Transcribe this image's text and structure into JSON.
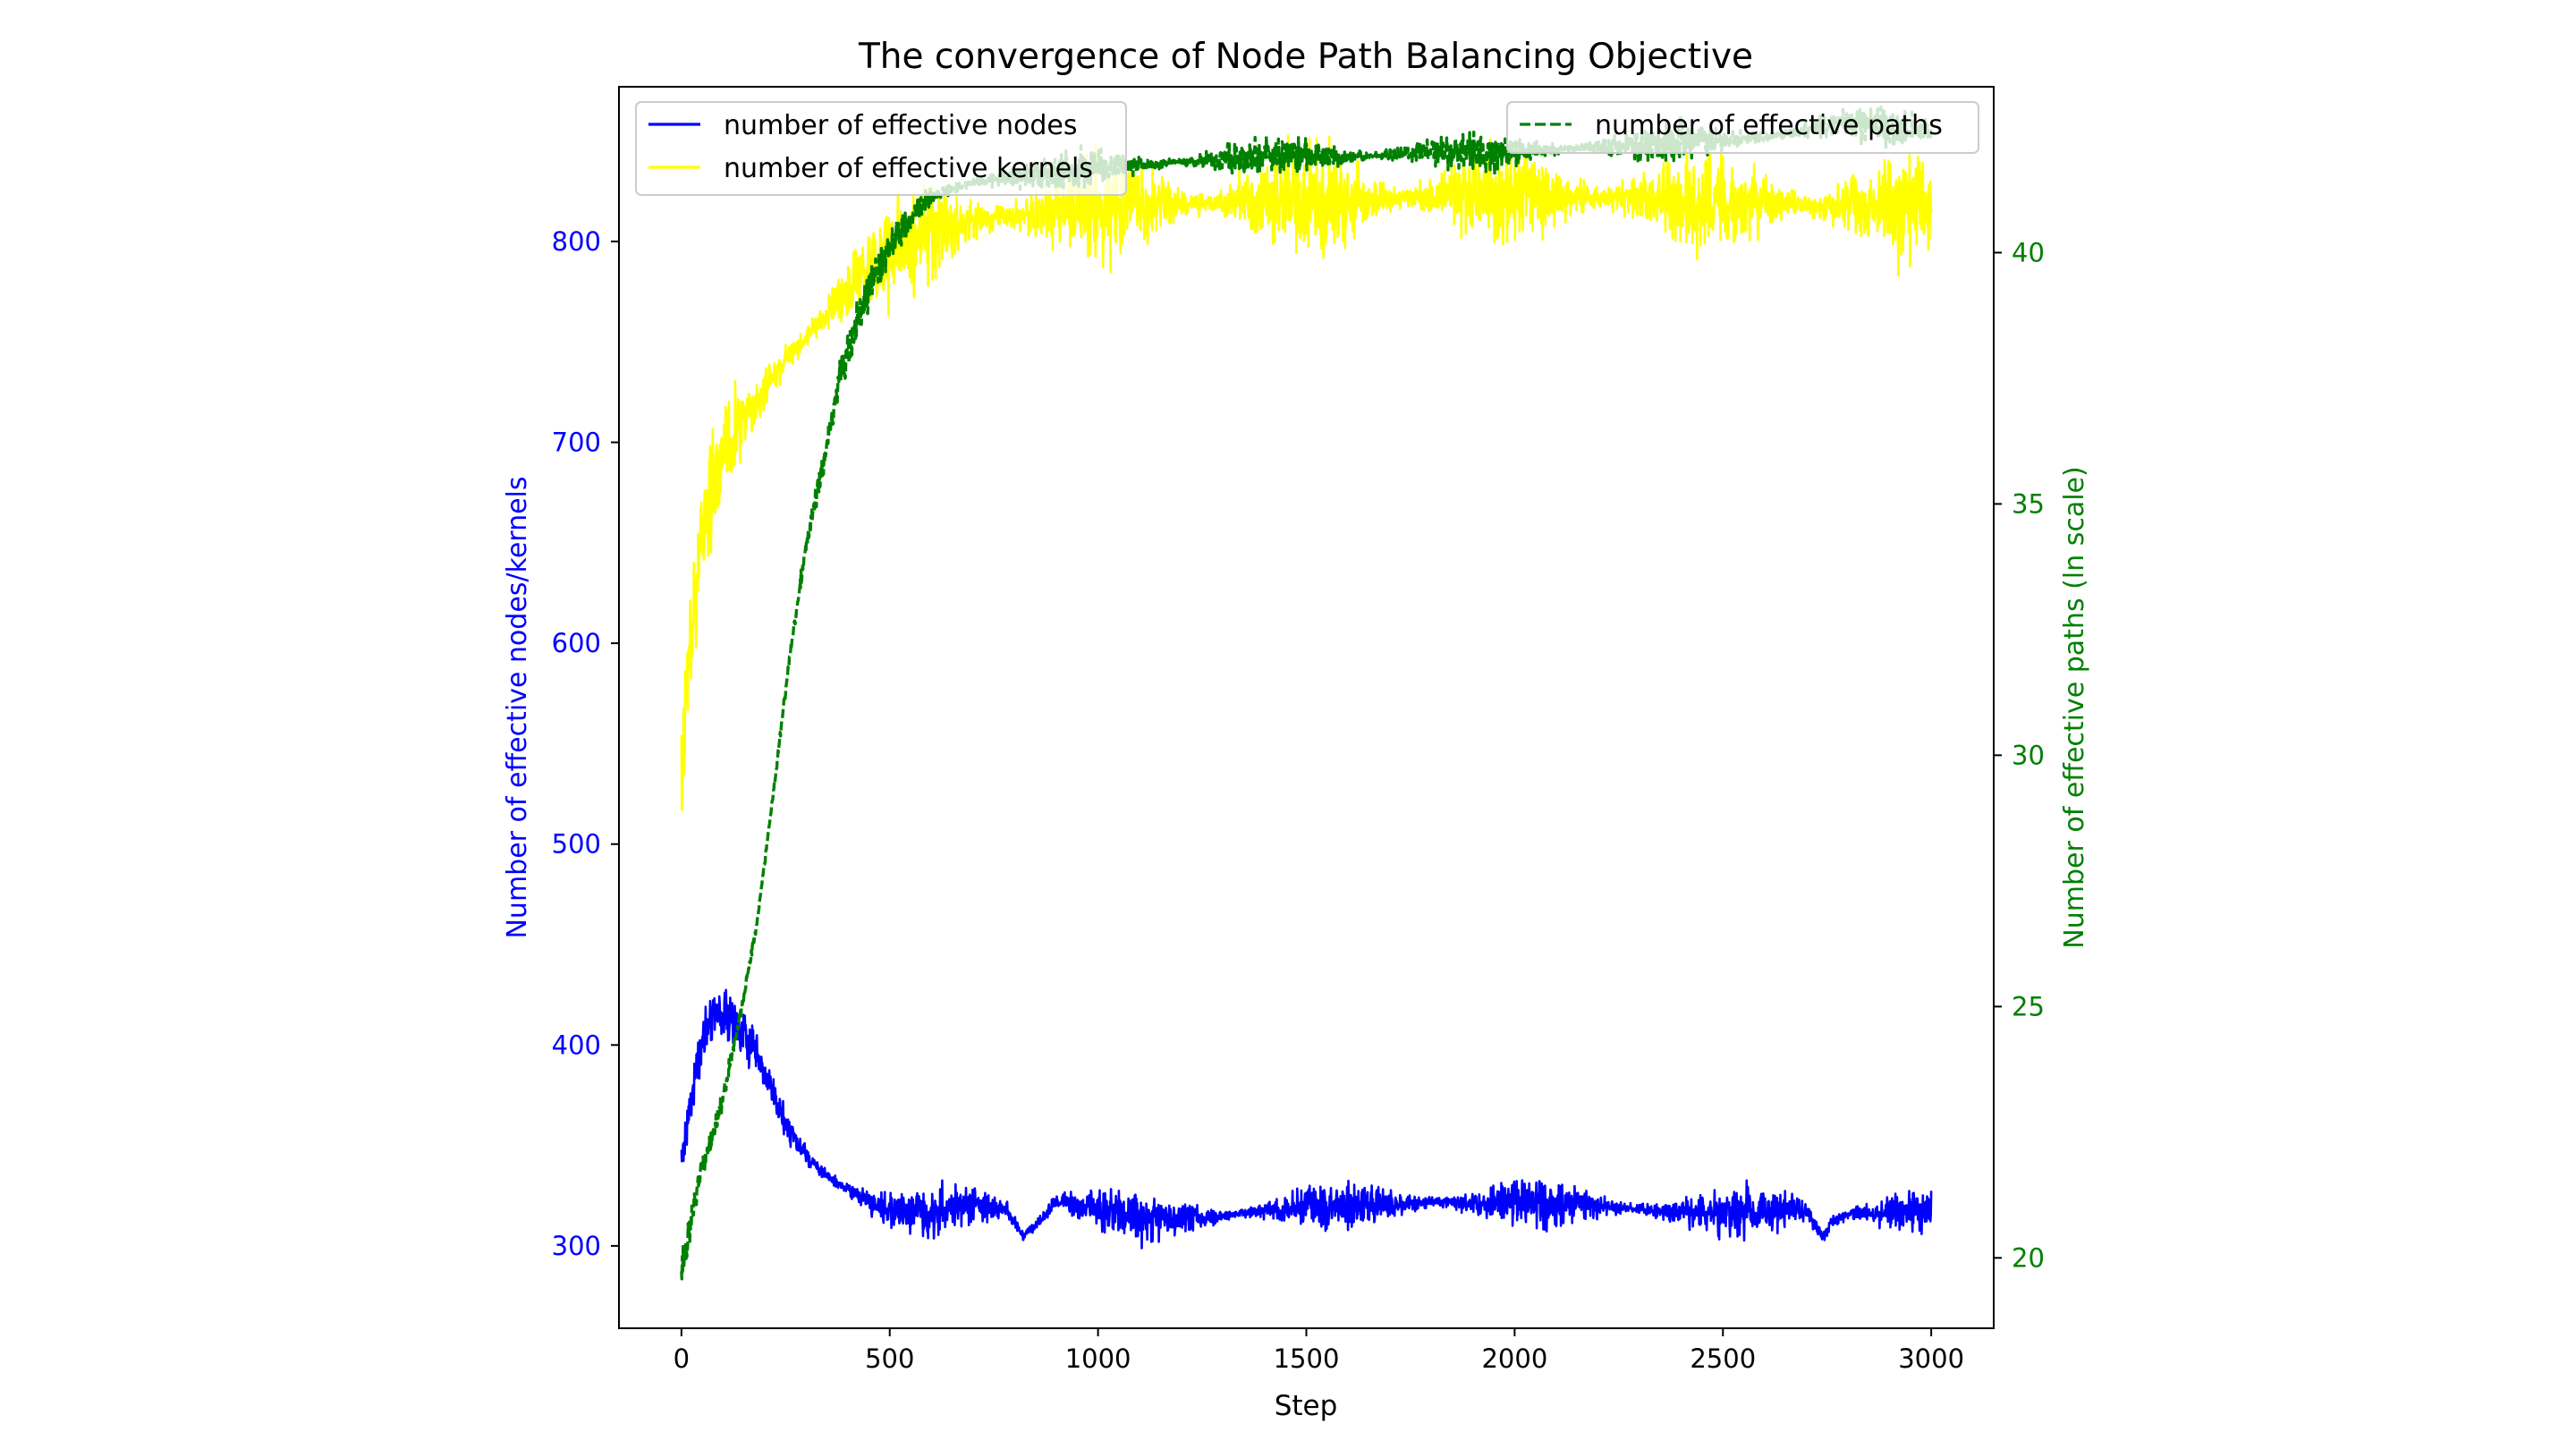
{
  "chart_data": {
    "type": "line",
    "title": "The convergence of Node Path Balancing Objective",
    "xlabel": "Step",
    "ylabel_left": "Number of effective nodes/kernels",
    "ylabel_right": "Number of effective paths (ln scale)",
    "xlim": [
      -150,
      3150
    ],
    "ylim_left": [
      259,
      877
    ],
    "ylim_right": [
      18.6,
      43.3
    ],
    "x_ticks": [
      0,
      500,
      1000,
      1500,
      2000,
      2500,
      3000
    ],
    "y_ticks_left": [
      300,
      400,
      500,
      600,
      700,
      800
    ],
    "y_ticks_right": [
      20,
      25,
      30,
      35,
      40
    ],
    "grid": false,
    "legend_left_position": "upper-left",
    "legend_right_position": "upper-right",
    "colors": {
      "nodes": "#0000ff",
      "kernels": "#ffff00",
      "paths": "#008000",
      "left_axis_text": "#0000ff",
      "right_axis_text": "#008000"
    },
    "series": [
      {
        "name": "number of effective nodes",
        "axis": "left",
        "style": "solid",
        "color": "#0000ff",
        "noise": 6,
        "x": [
          0,
          20,
          40,
          60,
          80,
          100,
          130,
          160,
          200,
          240,
          280,
          320,
          360,
          400,
          450,
          500,
          600,
          700,
          780,
          820,
          860,
          900,
          1000,
          1100,
          1200,
          1300,
          1400,
          1500,
          1600,
          1700,
          1800,
          1900,
          2000,
          2100,
          2200,
          2300,
          2400,
          2500,
          2600,
          2700,
          2740,
          2760,
          2800,
          2900,
          3000
        ],
        "values": [
          342,
          370,
          392,
          410,
          418,
          415,
          410,
          402,
          385,
          365,
          350,
          340,
          333,
          328,
          322,
          318,
          317,
          320,
          318,
          305,
          312,
          322,
          318,
          315,
          313,
          315,
          318,
          319,
          320,
          321,
          322,
          321,
          322,
          321,
          320,
          318,
          317,
          316,
          317,
          318,
          304,
          312,
          316,
          317,
          318
        ]
      },
      {
        "name": "number of effective kernels",
        "axis": "left",
        "style": "solid",
        "color": "#ffff00",
        "noise": 13,
        "x": [
          0,
          10,
          20,
          40,
          60,
          80,
          100,
          130,
          160,
          200,
          250,
          300,
          350,
          400,
          450,
          500,
          550,
          600,
          700,
          800,
          900,
          1000,
          1200,
          1400,
          1600,
          1800,
          2000,
          2200,
          2400,
          2600,
          2700,
          2800,
          2900,
          3000
        ],
        "values": [
          530,
          570,
          600,
          640,
          665,
          680,
          690,
          705,
          715,
          725,
          740,
          752,
          765,
          775,
          785,
          795,
          800,
          805,
          810,
          813,
          815,
          817,
          819,
          820,
          821,
          822,
          822,
          822,
          821,
          820,
          818,
          816,
          818,
          820
        ]
      },
      {
        "name": "number of effective paths",
        "axis": "right",
        "style": "dashed",
        "color": "#008000",
        "noise": 0.18,
        "x": [
          0,
          20,
          50,
          80,
          100,
          140,
          180,
          220,
          260,
          300,
          340,
          380,
          420,
          460,
          500,
          550,
          600,
          700,
          800,
          900,
          1000,
          1200,
          1400,
          1600,
          1800,
          2000,
          2200,
          2400,
          2600,
          2750,
          2800,
          2900,
          3000
        ],
        "values": [
          19.8,
          20.6,
          21.8,
          22.6,
          23.2,
          24.8,
          26.6,
          29.2,
          32.0,
          34.2,
          35.8,
          37.5,
          38.6,
          39.5,
          40.1,
          40.7,
          41.1,
          41.4,
          41.5,
          41.6,
          41.7,
          41.8,
          41.9,
          41.9,
          42.0,
          42.0,
          42.1,
          42.2,
          42.3,
          42.5,
          42.6,
          42.5,
          42.4
        ]
      }
    ]
  }
}
